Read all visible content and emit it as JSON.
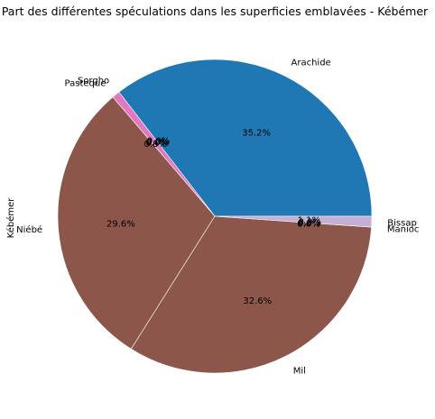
{
  "chart_data": {
    "type": "pie",
    "title": "Part des différentes spéculations dans les superficies emblavées - Kébémer",
    "ylabel": "Kébémer",
    "slices": [
      {
        "label": "Arachide",
        "value": 35.2,
        "pct_label": "35.2%",
        "color": "#1f77b4"
      },
      {
        "label": "Sorgho",
        "value": 0.0,
        "pct_label": "0.0%",
        "color": "#17becf"
      },
      {
        "label": "Pasteque",
        "value": 0.8,
        "pct_label": "0.8%",
        "color": "#e377c2"
      },
      {
        "label": "Niébé",
        "value": 29.6,
        "pct_label": "29.6%",
        "color": "#8c564b"
      },
      {
        "label": "Mil",
        "value": 32.6,
        "pct_label": "32.6%",
        "color": "#8c564b"
      },
      {
        "label": "Manioc",
        "value": 0.0,
        "pct_label": "0.0%",
        "color": "#9467bd"
      },
      {
        "label": "Bissap",
        "value": 1.1,
        "pct_label": "1.1%",
        "color": "#c5b0d5"
      }
    ],
    "overlap_pct_labels": [
      "0.0%",
      "0.0%",
      "0.0%",
      "0.0%",
      "0.0%",
      "0.0%"
    ]
  }
}
